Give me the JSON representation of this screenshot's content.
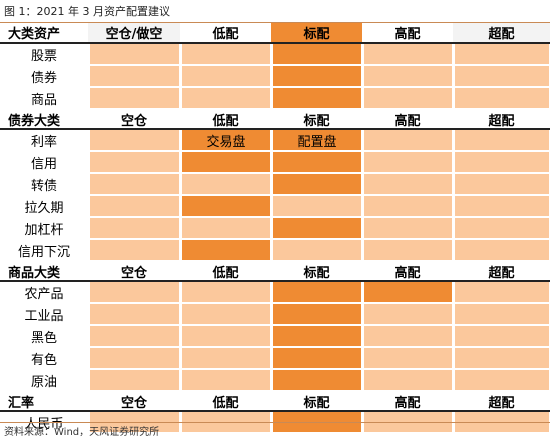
{
  "title": "图 1：2021 年 3 月资产配置建议",
  "source": "资料来源：Wind，天风证券研究所",
  "colors": {
    "dark": "#ef8b33",
    "light": "#fbc89c",
    "header_shade": "#f3f3f3"
  },
  "sections": [
    {
      "header": [
        "大类资产",
        "空仓/做空",
        "低配",
        "标配",
        "高配",
        "超配"
      ],
      "header_highlight": 3,
      "rows": [
        {
          "label": "股票",
          "cells": [
            "light",
            "light",
            "dark",
            "light",
            "light"
          ],
          "texts": [
            "",
            "",
            "",
            "",
            ""
          ]
        },
        {
          "label": "债券",
          "cells": [
            "light",
            "light",
            "dark",
            "light",
            "light"
          ],
          "texts": [
            "",
            "",
            "",
            "",
            ""
          ]
        },
        {
          "label": "商品",
          "cells": [
            "light",
            "light",
            "dark",
            "light",
            "light"
          ],
          "texts": [
            "",
            "",
            "",
            "",
            ""
          ]
        }
      ]
    },
    {
      "header": [
        "债券大类",
        "空仓",
        "低配",
        "标配",
        "高配",
        "超配"
      ],
      "header_highlight": -1,
      "rows": [
        {
          "label": "利率",
          "cells": [
            "light",
            "dark",
            "dark",
            "light",
            "light"
          ],
          "texts": [
            "",
            "交易盘",
            "配置盘",
            "",
            ""
          ]
        },
        {
          "label": "信用",
          "cells": [
            "light",
            "dark",
            "dark",
            "light",
            "light"
          ],
          "texts": [
            "",
            "",
            "",
            "",
            ""
          ]
        },
        {
          "label": "转债",
          "cells": [
            "light",
            "light",
            "dark",
            "light",
            "light"
          ],
          "texts": [
            "",
            "",
            "",
            "",
            ""
          ]
        },
        {
          "label": "拉久期",
          "cells": [
            "light",
            "dark",
            "light",
            "light",
            "light"
          ],
          "texts": [
            "",
            "",
            "",
            "",
            ""
          ]
        },
        {
          "label": "加杠杆",
          "cells": [
            "light",
            "light",
            "dark",
            "light",
            "light"
          ],
          "texts": [
            "",
            "",
            "",
            "",
            ""
          ]
        },
        {
          "label": "信用下沉",
          "cells": [
            "light",
            "dark",
            "light",
            "light",
            "light"
          ],
          "texts": [
            "",
            "",
            "",
            "",
            ""
          ]
        }
      ]
    },
    {
      "header": [
        "商品大类",
        "空仓",
        "低配",
        "标配",
        "高配",
        "超配"
      ],
      "header_highlight": -1,
      "rows": [
        {
          "label": "农产品",
          "cells": [
            "light",
            "light",
            "dark",
            "dark",
            "light"
          ],
          "texts": [
            "",
            "",
            "",
            "",
            ""
          ]
        },
        {
          "label": "工业品",
          "cells": [
            "light",
            "light",
            "dark",
            "light",
            "light"
          ],
          "texts": [
            "",
            "",
            "",
            "",
            ""
          ]
        },
        {
          "label": "黑色",
          "cells": [
            "light",
            "light",
            "dark",
            "light",
            "light"
          ],
          "texts": [
            "",
            "",
            "",
            "",
            ""
          ]
        },
        {
          "label": "有色",
          "cells": [
            "light",
            "light",
            "dark",
            "light",
            "light"
          ],
          "texts": [
            "",
            "",
            "",
            "",
            ""
          ]
        },
        {
          "label": "原油",
          "cells": [
            "light",
            "light",
            "dark",
            "light",
            "light"
          ],
          "texts": [
            "",
            "",
            "",
            "",
            ""
          ]
        }
      ]
    },
    {
      "header": [
        "汇率",
        "空仓",
        "低配",
        "标配",
        "高配",
        "超配"
      ],
      "header_highlight": -1,
      "rows": [
        {
          "label": "人民币",
          "cells": [
            "light",
            "light",
            "dark",
            "light",
            "light"
          ],
          "texts": [
            "",
            "",
            "",
            "",
            ""
          ]
        }
      ]
    }
  ]
}
